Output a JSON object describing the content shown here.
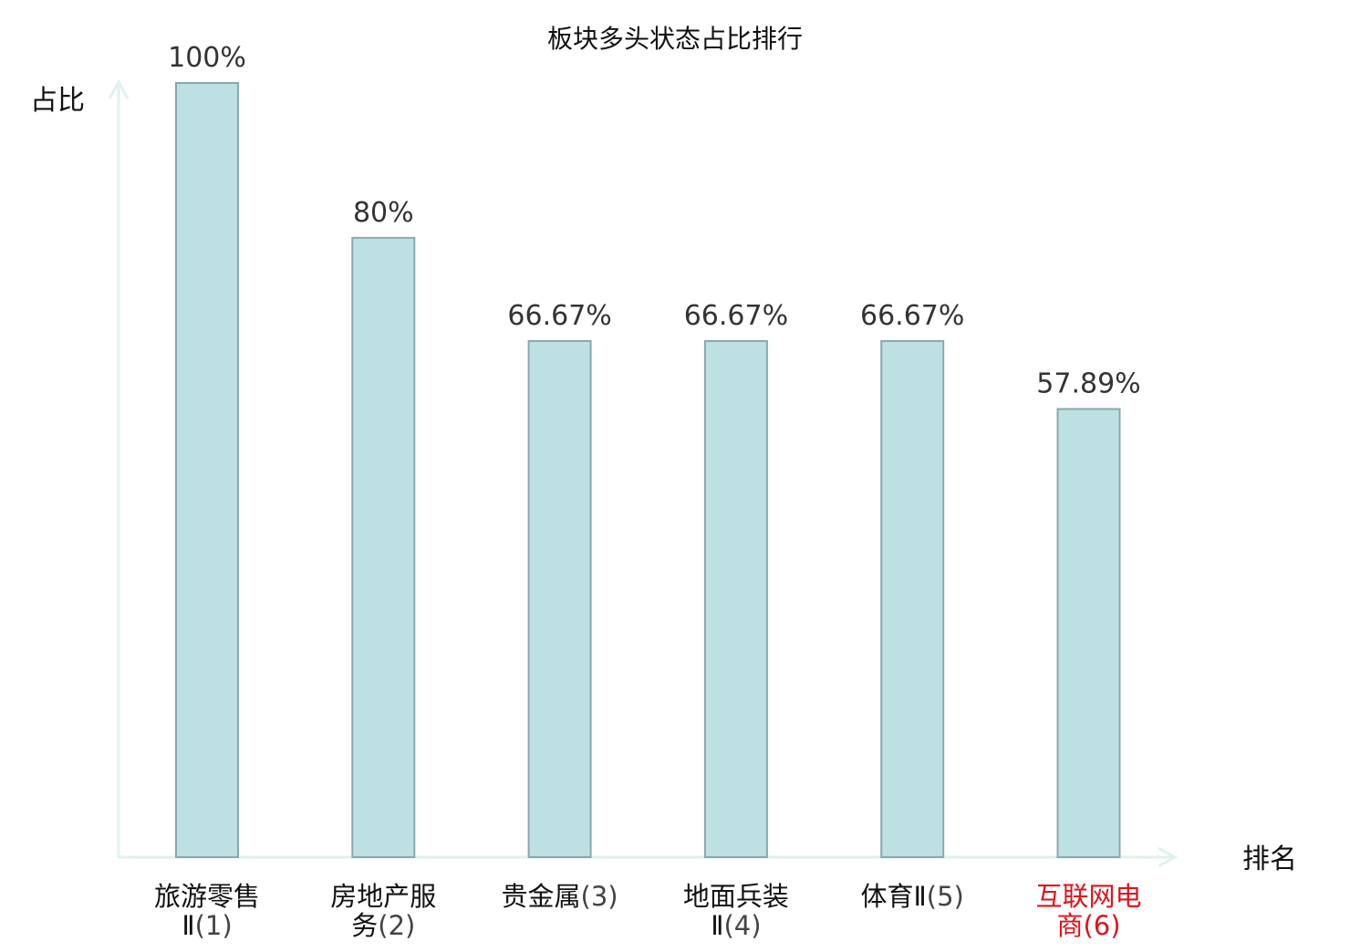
{
  "chart_data": {
    "type": "bar",
    "title": "板块多头状态占比排行",
    "xlabel": "排名",
    "ylabel": "占比",
    "ylim": [
      0,
      100
    ],
    "grid": false,
    "bar_color": "#bde0e3",
    "bar_edge_color": "#8aa8aa",
    "axis_color": "#dff2ef",
    "highlight_color": "#e0121b",
    "categories": [
      {
        "name_lines": [
          "旅游零售",
          "Ⅱ"
        ],
        "rank": "(1)",
        "highlight": false
      },
      {
        "name_lines": [
          "房地产服",
          "务"
        ],
        "rank": "(2)",
        "highlight": false
      },
      {
        "name_lines": [
          "贵金属"
        ],
        "rank": "(3)",
        "highlight": false
      },
      {
        "name_lines": [
          "地面兵装",
          "Ⅱ"
        ],
        "rank": "(4)",
        "highlight": false
      },
      {
        "name_lines": [
          "体育Ⅱ"
        ],
        "rank": "(5)",
        "highlight": false
      },
      {
        "name_lines": [
          "互联网电",
          "商"
        ],
        "rank": "(6)",
        "highlight": true
      }
    ],
    "values": [
      100,
      80,
      66.67,
      66.67,
      66.67,
      57.89
    ],
    "value_labels": [
      "100%",
      "80%",
      "66.67%",
      "66.67%",
      "66.67%",
      "57.89%"
    ]
  }
}
